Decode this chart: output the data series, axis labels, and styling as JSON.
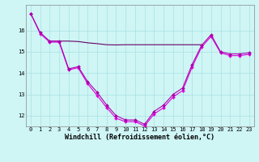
{
  "xlabel": "Windchill (Refroidissement éolien,°C)",
  "x": [
    0,
    1,
    2,
    3,
    4,
    5,
    6,
    7,
    8,
    9,
    10,
    11,
    12,
    13,
    14,
    15,
    16,
    17,
    18,
    19,
    20,
    21,
    22,
    23
  ],
  "line1": [
    16.8,
    15.9,
    15.5,
    15.5,
    14.2,
    14.3,
    13.6,
    13.1,
    12.5,
    12.0,
    11.8,
    11.8,
    11.6,
    12.2,
    12.5,
    13.0,
    13.3,
    14.4,
    15.3,
    15.8,
    15.0,
    14.9,
    14.9,
    14.95
  ],
  "line2": [
    16.8,
    15.85,
    15.45,
    15.45,
    14.15,
    14.25,
    13.5,
    12.95,
    12.38,
    11.88,
    11.72,
    11.72,
    11.52,
    12.08,
    12.38,
    12.88,
    13.18,
    14.28,
    15.22,
    15.72,
    14.95,
    14.82,
    14.82,
    14.88
  ],
  "line3_x": [
    2,
    3,
    4,
    5,
    6,
    7,
    8,
    9,
    10,
    11,
    12,
    13,
    14,
    15,
    16,
    17,
    18
  ],
  "line3_y": [
    15.5,
    15.5,
    15.5,
    15.48,
    15.42,
    15.38,
    15.33,
    15.32,
    15.33,
    15.33,
    15.33,
    15.33,
    15.33,
    15.33,
    15.33,
    15.33,
    15.33
  ],
  "line_color1": "#aa00aa",
  "line_color2": "#dd00dd",
  "line_color3": "#660066",
  "bg_color": "#cff5f5",
  "grid_color": "#a0dddd",
  "ylim": [
    11.5,
    17.2
  ],
  "yticks": [
    12,
    13,
    14,
    15,
    16
  ],
  "xticks": [
    0,
    1,
    2,
    3,
    4,
    5,
    6,
    7,
    8,
    9,
    10,
    11,
    12,
    13,
    14,
    15,
    16,
    17,
    18,
    19,
    20,
    21,
    22,
    23
  ],
  "tick_fontsize": 5.0,
  "xlabel_fontsize": 6.0,
  "marker": "D",
  "markersize": 2.0,
  "linewidth": 0.8
}
